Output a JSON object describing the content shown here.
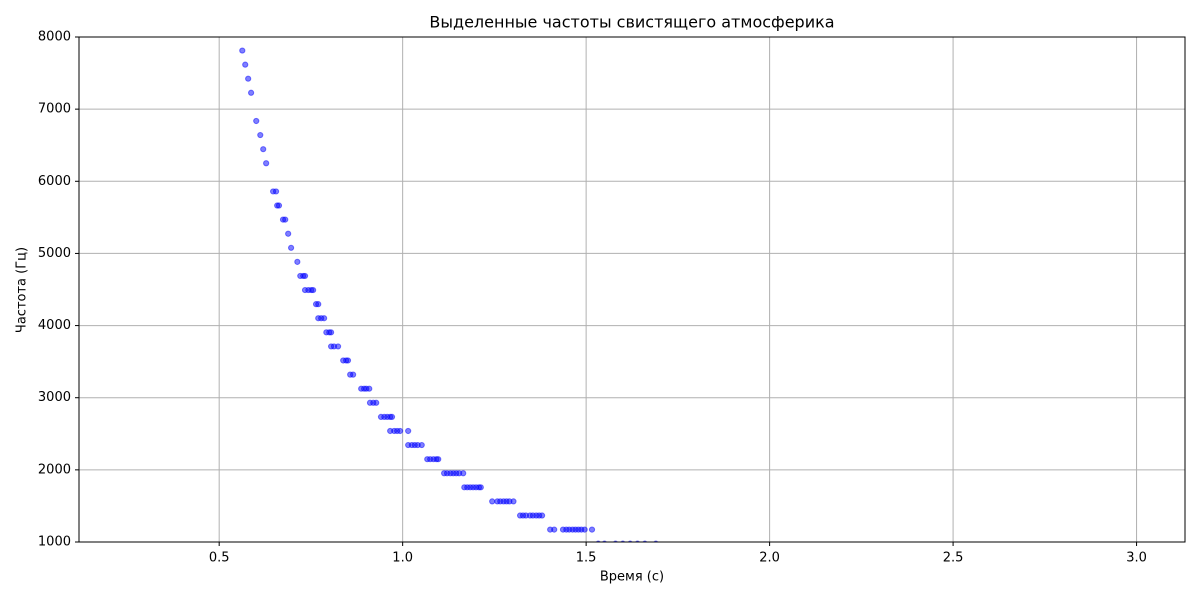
{
  "chart_data": {
    "type": "scatter",
    "title": "Выделенные частоты свистящего атмосферика",
    "xlabel": "Время (с)",
    "ylabel": "Частота (Гц)",
    "xlim": [
      0.118,
      3.132
    ],
    "ylim": [
      1000,
      8000
    ],
    "xticks": [
      0.5,
      {
        "value": 1,
        "label": "1.0"
      },
      1.5,
      {
        "value": 2,
        "label": "2.0"
      },
      2.5,
      {
        "value": 3,
        "label": "3.0"
      }
    ],
    "yticks": [
      1000,
      2000,
      3000,
      4000,
      5000,
      6000,
      7000,
      8000
    ],
    "grid": true,
    "series": [
      {
        "color": "#0000ff",
        "x": [
          0.563,
          0.571,
          0.579,
          0.587,
          0.601,
          0.612,
          0.62,
          0.628,
          0.647,
          0.655,
          0.658,
          0.663,
          0.674,
          0.68,
          0.688,
          0.696,
          0.713,
          0.721,
          0.729,
          0.734,
          0.734,
          0.743,
          0.751,
          0.756,
          0.764,
          0.77,
          0.77,
          0.778,
          0.786,
          0.792,
          0.8,
          0.805,
          0.805,
          0.813,
          0.824,
          0.838,
          0.846,
          0.851,
          0.857,
          0.865,
          0.887,
          0.895,
          0.901,
          0.909,
          0.911,
          0.92,
          0.928,
          0.941,
          0.95,
          0.958,
          0.966,
          0.971,
          0.966,
          0.977,
          0.985,
          0.993,
          1.015,
          1.015,
          1.025,
          1.033,
          1.041,
          1.052,
          1.067,
          1.075,
          1.084,
          1.092,
          1.097,
          1.113,
          1.121,
          1.13,
          1.138,
          1.146,
          1.154,
          1.165,
          1.168,
          1.176,
          1.184,
          1.192,
          1.2,
          1.208,
          1.213,
          1.244,
          1.258,
          1.266,
          1.275,
          1.283,
          1.291,
          1.302,
          1.32,
          1.328,
          1.336,
          1.347,
          1.355,
          1.364,
          1.372,
          1.38,
          1.402,
          1.413,
          1.437,
          1.446,
          1.454,
          1.463,
          1.471,
          1.479,
          1.487,
          1.496,
          1.516,
          1.533,
          1.55,
          1.58,
          1.6,
          1.62,
          1.64,
          1.66,
          1.69
        ],
        "values": [
          7812,
          7617,
          7422,
          7227,
          6836,
          6641,
          6445,
          6250,
          5859,
          5859,
          5664,
          5664,
          5469,
          5469,
          5273,
          5078,
          4883,
          4688,
          4688,
          4688,
          4492,
          4492,
          4492,
          4492,
          4297,
          4297,
          4102,
          4102,
          4102,
          3906,
          3906,
          3906,
          3711,
          3711,
          3711,
          3516,
          3516,
          3516,
          3320,
          3320,
          3125,
          3125,
          3125,
          3125,
          2930,
          2930,
          2930,
          2734,
          2734,
          2734,
          2734,
          2734,
          2539,
          2539,
          2539,
          2539,
          2539,
          2344,
          2344,
          2344,
          2344,
          2344,
          2148,
          2148,
          2148,
          2148,
          2148,
          1953,
          1953,
          1953,
          1953,
          1953,
          1953,
          1953,
          1758,
          1758,
          1758,
          1758,
          1758,
          1758,
          1758,
          1563,
          1563,
          1563,
          1563,
          1563,
          1563,
          1563,
          1367,
          1367,
          1367,
          1367,
          1367,
          1367,
          1367,
          1367,
          1172,
          1172,
          1172,
          1172,
          1172,
          1172,
          1172,
          1172,
          1172,
          1172,
          1172,
          977,
          977,
          977,
          977,
          977,
          977,
          977,
          977
        ]
      }
    ]
  }
}
